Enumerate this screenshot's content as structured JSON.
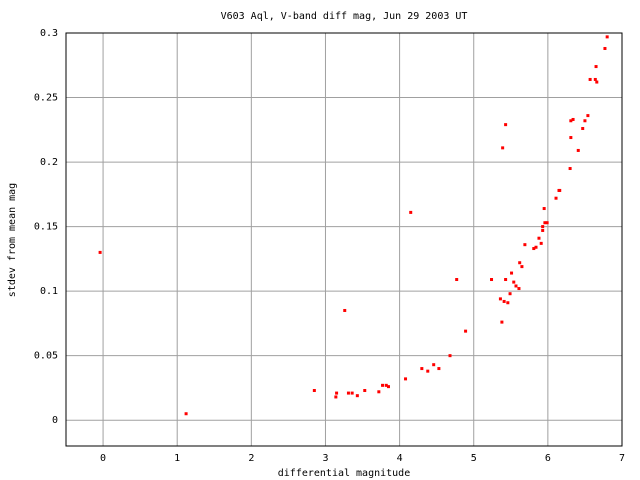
{
  "chart_data": {
    "type": "scatter",
    "title": "V603 Aql, V-band diff mag, Jun 29 2003 UT",
    "x_label": "differential magnitude",
    "y_label": "stdev from mean mag",
    "color": "#ff0000",
    "grid": true,
    "xlim": [
      -0.5,
      7
    ],
    "xticks": [
      0,
      1,
      2,
      3,
      4,
      5,
      6,
      7
    ],
    "ylim": [
      -0.02,
      0.3
    ],
    "yticks": [
      0,
      0.05,
      0.1,
      0.15,
      0.2,
      0.25,
      0.3
    ],
    "x": [
      -0.04,
      1.12,
      2.85,
      3.14,
      3.15,
      3.26,
      3.31,
      3.36,
      3.43,
      3.53,
      3.72,
      3.77,
      3.82,
      3.85,
      4.08,
      4.15,
      4.3,
      4.38,
      4.46,
      4.53,
      4.68,
      4.77,
      4.89,
      5.24,
      5.36,
      5.38,
      5.39,
      5.41,
      5.43,
      5.43,
      5.46,
      5.49,
      5.51,
      5.54,
      5.57,
      5.61,
      5.62,
      5.65,
      5.69,
      5.81,
      5.84,
      5.88,
      5.91,
      5.93,
      5.93,
      5.95,
      5.96,
      5.99,
      6.11,
      6.15,
      6.16,
      6.3,
      6.31,
      6.31,
      6.34,
      6.41,
      6.47,
      6.5,
      6.54,
      6.57,
      6.64,
      6.65,
      6.66,
      6.77,
      6.8
    ],
    "values": [
      0.13,
      0.005,
      0.023,
      0.018,
      0.021,
      0.085,
      0.021,
      0.021,
      0.019,
      0.023,
      0.022,
      0.027,
      0.027,
      0.026,
      0.032,
      0.161,
      0.04,
      0.038,
      0.043,
      0.04,
      0.05,
      0.109,
      0.069,
      0.109,
      0.094,
      0.076,
      0.211,
      0.092,
      0.229,
      0.109,
      0.091,
      0.098,
      0.114,
      0.107,
      0.104,
      0.102,
      0.122,
      0.119,
      0.136,
      0.133,
      0.134,
      0.141,
      0.137,
      0.147,
      0.15,
      0.164,
      0.153,
      0.153,
      0.172,
      0.178,
      0.178,
      0.195,
      0.219,
      0.232,
      0.233,
      0.209,
      0.226,
      0.232,
      0.236,
      0.264,
      0.264,
      0.274,
      0.262,
      0.288,
      0.297
    ]
  }
}
